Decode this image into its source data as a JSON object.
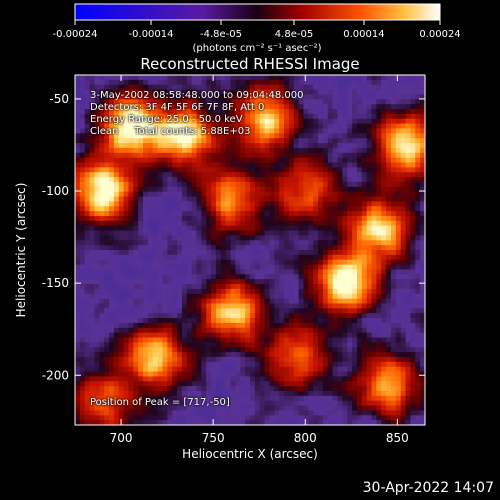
{
  "colorbar": {
    "tick_labels": [
      "-0.00024",
      "-0.00014",
      "-4.8e-05",
      "4.8e-05",
      "0.00014",
      "0.00024"
    ],
    "unit_label": "(photons cm⁻² s⁻¹ asec⁻²)"
  },
  "info": {
    "line1": "3-May-2002 08:58:48.000 to 09:04:48.000",
    "line2": "Detectors: 3F 4F 5F 6F 7F 8F, Att 0",
    "line3": "Energy Range: 25.0 - 50.0 keV",
    "line4": "Clean     Total counts: 5.88E+03",
    "peak": "Position of Peak = [717,-50]"
  },
  "timestamp": "30-Apr-2022 14:07",
  "chart_data": {
    "type": "heatmap",
    "title": "Reconstructed RHESSI Image",
    "xlabel": "Heliocentric X (arcsec)",
    "ylabel": "Heliocentric Y (arcsec)",
    "xlim": [
      675,
      865
    ],
    "ylim": [
      -227,
      -37
    ],
    "xticks": [
      700,
      750,
      800,
      850
    ],
    "yticks": [
      -50,
      -100,
      -150,
      -200
    ],
    "xtick_labels": [
      "700",
      "750",
      "800",
      "850"
    ],
    "ytick_labels": [
      "-50",
      "-100",
      "-150",
      "-200"
    ],
    "color_range": [
      -0.00024,
      0.00024
    ],
    "peak_position": [
      717,
      -50
    ],
    "bright_sources": [
      {
        "x": 705,
        "y": -65,
        "level": 0.95
      },
      {
        "x": 690,
        "y": -100,
        "level": 0.9
      },
      {
        "x": 735,
        "y": -70,
        "level": 0.8
      },
      {
        "x": 778,
        "y": -60,
        "level": 0.75
      },
      {
        "x": 760,
        "y": -105,
        "level": 0.65
      },
      {
        "x": 800,
        "y": -100,
        "level": 0.6
      },
      {
        "x": 855,
        "y": -75,
        "level": 0.85
      },
      {
        "x": 840,
        "y": -120,
        "level": 0.8
      },
      {
        "x": 822,
        "y": -150,
        "level": 0.9
      },
      {
        "x": 718,
        "y": -190,
        "level": 0.8
      },
      {
        "x": 760,
        "y": -165,
        "level": 0.75
      },
      {
        "x": 795,
        "y": -190,
        "level": 0.6
      },
      {
        "x": 690,
        "y": -215,
        "level": 0.55
      },
      {
        "x": 845,
        "y": -205,
        "level": 0.7
      }
    ],
    "colormap": "red-temperature (dark blue to white)"
  }
}
